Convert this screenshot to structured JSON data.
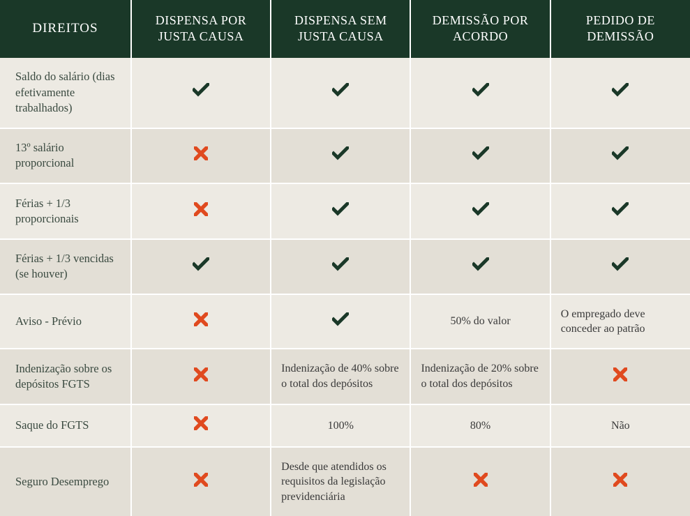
{
  "colors": {
    "header_bg": "#1a3828",
    "header_text": "#ffffff",
    "row_bg": "#edeae3",
    "row_alt_bg": "#e3dfd6",
    "text": "#3a3a3a",
    "first_col_text": "#3a4a40",
    "check": "#1a3828",
    "cross": "#e04a1f",
    "divider": "#ffffff"
  },
  "typography": {
    "header_fontsize": 18,
    "cell_fontsize": 16,
    "first_col_fontsize": 16.5,
    "font_family": "Georgia, serif"
  },
  "table": {
    "type": "comparison-table",
    "columns": [
      "DIREITOS",
      "DISPENSA POR JUSTA CAUSA",
      "DISPENSA SEM JUSTA CAUSA",
      "DEMISSÃO POR ACORDO",
      "PEDIDO DE DEMISSÃO"
    ],
    "rows": [
      {
        "label": "Saldo do salário (dias efetivamente trabalhados)",
        "cells": [
          "check",
          "check",
          "check",
          "check"
        ]
      },
      {
        "label": "13º salário proporcional",
        "cells": [
          "cross",
          "check",
          "check",
          "check"
        ]
      },
      {
        "label": "Férias + 1/3 proporcionais",
        "cells": [
          "cross",
          "check",
          "check",
          "check"
        ]
      },
      {
        "label": "Férias + 1/3 vencidas (se houver)",
        "cells": [
          "check",
          "check",
          "check",
          "check"
        ]
      },
      {
        "label": "Aviso - Prévio",
        "cells": [
          "cross",
          "check",
          "50% do valor",
          "O empregado deve conceder ao patrão"
        ]
      },
      {
        "label": "Indenização sobre os depósitos FGTS",
        "cells": [
          "cross",
          "Indenização de 40% sobre o total dos depósitos",
          "Indenização de 20% sobre o total dos depósitos",
          "cross"
        ]
      },
      {
        "label": "Saque do FGTS",
        "cells": [
          "cross",
          "100%",
          "80%",
          "Não"
        ]
      },
      {
        "label": "Seguro Desemprego",
        "cells": [
          "cross",
          "Desde que atendidos os requisitos da legislação previdenciária",
          "cross",
          "cross"
        ]
      }
    ]
  }
}
